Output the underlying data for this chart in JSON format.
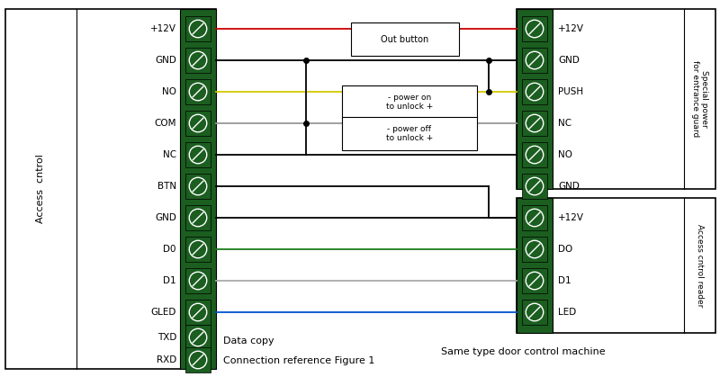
{
  "bg_color": "#ffffff",
  "fig_w": 8.0,
  "fig_h": 4.19,
  "dpi": 100,
  "green_color": "#1b5e20",
  "left_labels": [
    "+12V",
    "GND",
    "NO",
    "COM",
    "NC",
    "BTN",
    "GND",
    "D0",
    "D1",
    "GLED",
    "TXD",
    "RXD"
  ],
  "right_top_labels": [
    "+12V",
    "GND",
    "PUSH",
    "NC",
    "NO"
  ],
  "right_bot_labels": [
    "GND",
    "+12V",
    "DO",
    "D1",
    "LED"
  ],
  "bottom_text1": "Data copy",
  "bottom_text2": "Connection reference Figure 1",
  "bottom_text3": "Same type door control machine",
  "left_label_text": "Access  cntrol",
  "right_top_label_text": "Special power\nfor entrance guard",
  "right_bot_label_text": "Access cntrol reader"
}
